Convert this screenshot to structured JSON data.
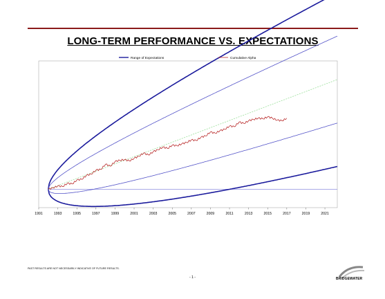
{
  "title": "LONG-TERM PERFORMANCE VS. EXPECTATIONS",
  "footer": {
    "disclaimer": "PAST RESULTS ARE NOT NECESSARILY INDICATIVE OF FUTURE RESULTS.",
    "page_number": "- 1 -",
    "logo_text": "BRIDGEWATER"
  },
  "colors": {
    "band_outer": "#1a1a9c",
    "band_inner": "#5252c8",
    "expected_center": "#9adf9a",
    "cumulative_alpha": "#b01010",
    "zero_line": "#8d8de0",
    "rule": "#8b1a1a"
  },
  "chart_data": {
    "type": "line",
    "title": "",
    "xlabel": "",
    "ylabel": "",
    "x_ticks": [
      "1991",
      "1993",
      "1995",
      "1997",
      "1999",
      "2001",
      "2003",
      "2005",
      "2007",
      "2009",
      "2011",
      "2013",
      "2015",
      "2017",
      "2019",
      "2021"
    ],
    "xlim": [
      1991,
      2022.3
    ],
    "ylim": [
      -0.28,
      1.95
    ],
    "origin_x": 1992,
    "y_tick_labels_shown": false,
    "grid": false,
    "legend_position": "top",
    "legend": [
      {
        "label": "Range of Expectations",
        "color": "#1a1a9c"
      },
      {
        "label": "Cumulative Alpha",
        "color": "#b01010"
      }
    ],
    "band_model": {
      "drift_per_year": 0.055,
      "sigma_per_sqrt_year": 0.12,
      "inner_multiplier": 1,
      "outer_multiplier": 2
    },
    "series": [
      {
        "name": "Cumulative Alpha",
        "x": [
          1992.0,
          1992.5,
          1993.0,
          1993.5,
          1994.0,
          1994.5,
          1995.0,
          1995.5,
          1996.0,
          1996.5,
          1997.0,
          1997.5,
          1998.0,
          1998.5,
          1999.0,
          1999.5,
          2000.0,
          2000.5,
          2001.0,
          2001.5,
          2002.0,
          2002.5,
          2003.0,
          2003.5,
          2004.0,
          2004.5,
          2005.0,
          2005.5,
          2006.0,
          2006.5,
          2007.0,
          2007.5,
          2008.0,
          2008.5,
          2009.0,
          2009.5,
          2010.0,
          2010.5,
          2011.0,
          2011.5,
          2012.0,
          2012.5,
          2013.0,
          2013.5,
          2014.0,
          2014.5,
          2015.0,
          2015.5,
          2016.0,
          2016.5,
          2017.0
        ],
        "y": [
          0.0,
          0.02,
          0.05,
          0.04,
          0.09,
          0.08,
          0.14,
          0.15,
          0.21,
          0.23,
          0.29,
          0.3,
          0.38,
          0.35,
          0.42,
          0.44,
          0.45,
          0.43,
          0.47,
          0.5,
          0.55,
          0.52,
          0.57,
          0.6,
          0.64,
          0.62,
          0.67,
          0.66,
          0.69,
          0.71,
          0.75,
          0.74,
          0.79,
          0.81,
          0.87,
          0.85,
          0.89,
          0.91,
          0.96,
          0.95,
          1.02,
          1.0,
          1.04,
          1.06,
          1.08,
          1.07,
          1.1,
          1.08,
          1.05,
          1.04,
          1.08
        ]
      }
    ]
  }
}
